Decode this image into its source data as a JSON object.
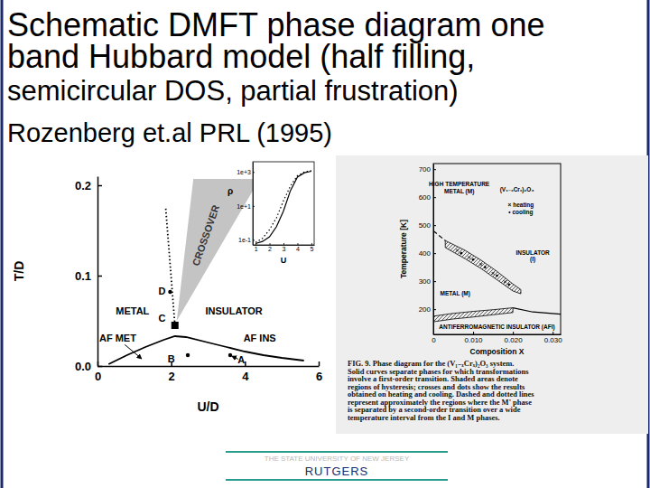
{
  "slide": {
    "title_lines": [
      "Schematic DMFT phase diagram one",
      "band  Hubbard model (half filling,",
      "semicircular DOS, partial frustration)",
      "Rozenberg et.al PRL (1995)"
    ],
    "footer": [
      "THE STATE UNIVERSITY OF NEW JERSEY",
      "RUTGERS"
    ]
  },
  "chart_data": [
    {
      "type": "line",
      "xlabel": "U/D",
      "ylabel": "T/D",
      "xlim": [
        0,
        6
      ],
      "ylim": [
        0,
        0.21
      ],
      "xticks": [
        0,
        2,
        4,
        6
      ],
      "yticks": [
        {
          "value": 0,
          "label": "0.0"
        },
        0.1,
        0.2
      ],
      "series": [
        {
          "type": "area",
          "label": "CROSSOVER",
          "x": [
            2.15,
            2.6,
            4.4
          ],
          "values": [
            0.05,
            0.207,
            0.207
          ],
          "color": "#c4c4c4"
        },
        {
          "type": "line",
          "x": [
            2.1,
            1.85
          ],
          "values": [
            0.045,
            0.175
          ],
          "color": "#000000",
          "line_style": "dotted"
        },
        {
          "type": "line",
          "x": [
            0.3,
            0.8,
            1.3,
            1.8,
            2.1,
            2.4,
            3,
            3.5,
            4,
            4.5,
            5,
            5.6
          ],
          "values": [
            0.002,
            0.012,
            0.021,
            0.029,
            0.033,
            0.032,
            0.026,
            0.021,
            0.016,
            0.012,
            0.009,
            0.006
          ],
          "color": "#000000",
          "line_style": "solid"
        },
        {
          "type": "scatter",
          "x": [
            2.1
          ],
          "values": [
            0.045
          ],
          "marker": "square",
          "color": "#000000"
        },
        {
          "type": "scatter",
          "x": [
            1.97,
            2.45,
            3.6
          ],
          "values": [
            0.082,
            0.012,
            0.012
          ],
          "marker": "circle",
          "color": "#000000"
        }
      ],
      "annotations": [
        {
          "text": "METAL",
          "x": 0.95,
          "y": 0.06
        },
        {
          "text": "INSULATOR",
          "x": 3.7,
          "y": 0.06
        },
        {
          "text": "D",
          "x": 1.75,
          "y": 0.082
        },
        {
          "text": "C",
          "x": 1.75,
          "y": 0.052
        },
        {
          "text": "AF MET",
          "x": 0.55,
          "y": 0.03,
          "arrow": [
            1.2,
            0.008
          ]
        },
        {
          "text": "AF INS",
          "x": 4.4,
          "y": 0.03
        },
        {
          "text": "B",
          "x": 2.0,
          "y": 0.007
        },
        {
          "text": "A",
          "x": 3.9,
          "y": 0.006,
          "arrow": [
            3.64,
            0.011
          ]
        }
      ]
    },
    {
      "type": "line",
      "log": "y",
      "xlabel": "U",
      "ylabel": "ρ",
      "xlim": [
        0.8,
        5.2
      ],
      "ylim": [
        0.05,
        4000
      ],
      "xticks": [
        1,
        2,
        3,
        4,
        5
      ],
      "yticks": [
        {
          "value": 0.1,
          "label": "1e-1"
        },
        {
          "value": 10,
          "label": "1e+1"
        },
        {
          "value": 1000,
          "label": "1e+3"
        }
      ],
      "series": [
        {
          "type": "line",
          "x": [
            1,
            1.5,
            2,
            2.5,
            3,
            3.5,
            4,
            4.5,
            5
          ],
          "values": [
            0.06,
            0.08,
            0.15,
            0.6,
            5,
            80,
            500,
            900,
            1100
          ],
          "color": "#000000",
          "line_style": "solid"
        },
        {
          "type": "line",
          "x": [
            1,
            1.5,
            2,
            2.5,
            3,
            3.5,
            4,
            4.5,
            5
          ],
          "values": [
            0.07,
            0.12,
            0.4,
            2,
            20,
            150,
            600,
            1000,
            1200
          ],
          "color": "#000000",
          "line_style": "dotted"
        }
      ]
    },
    {
      "type": "line",
      "xlabel": "Composition X",
      "ylabel": "Temperature [K]",
      "xlim": [
        0,
        0.032
      ],
      "ylim": [
        110,
        720
      ],
      "xticks": [
        0,
        {
          "value": 0.01,
          "label": "0.010"
        },
        {
          "value": 0.02,
          "label": "0.020"
        },
        {
          "value": 0.03,
          "label": "0.030"
        }
      ],
      "yticks": [
        200,
        300,
        400,
        500,
        600,
        700
      ],
      "series": [
        {
          "type": "band",
          "x": [
            0.003,
            0.008,
            0.012,
            0.016,
            0.02,
            0.022
          ],
          "values": [
            445,
            410,
            375,
            335,
            290,
            270
          ],
          "low": [
            420,
            380,
            345,
            305,
            265,
            255
          ],
          "color": "#000000"
        },
        {
          "type": "band",
          "x": [
            0,
            0.005,
            0.01,
            0.015,
            0.02
          ],
          "values": [
            175,
            185,
            192,
            198,
            205
          ],
          "low": [
            155,
            165,
            172,
            180,
            188
          ],
          "color": "#000000"
        },
        {
          "type": "line",
          "x": [
            0.02,
            0.025,
            0.032
          ],
          "values": [
            205,
            190,
            182
          ],
          "color": "#000000",
          "line_style": "solid"
        },
        {
          "type": "line",
          "x": [
            0,
            0.003
          ],
          "values": [
            480,
            445
          ],
          "color": "#000000",
          "line_style": "dashed"
        },
        {
          "type": "scatter",
          "x": [
            0.006,
            0.009,
            0.012,
            0.015,
            0.018
          ],
          "values": [
            410,
            385,
            360,
            328,
            298
          ],
          "marker": "x",
          "color": "#000000"
        },
        {
          "type": "scatter",
          "x": [
            0.007,
            0.01,
            0.013,
            0.016,
            0.019
          ],
          "values": [
            400,
            377,
            350,
            320,
            288
          ],
          "marker": "circle",
          "color": "#000000"
        }
      ],
      "annotations": [
        {
          "text": "HIGH TEMPERATURE",
          "x": 0.0065,
          "y": 645
        },
        {
          "text": "METAL (M)",
          "x": 0.0065,
          "y": 620
        },
        {
          "text": "(V₁₋ₓCrₓ)₂O₃",
          "x": 0.021,
          "y": 625
        },
        {
          "text": "× heating",
          "x": 0.022,
          "y": 570
        },
        {
          "text": "• cooling",
          "x": 0.022,
          "y": 545
        },
        {
          "text": "INSULATOR",
          "x": 0.025,
          "y": 400
        },
        {
          "text": "(I)",
          "x": 0.025,
          "y": 378
        },
        {
          "text": "METAL (M)",
          "x": 0.0055,
          "y": 255
        },
        {
          "text": "ANTIFERROMAGNETIC INSULATOR (AFI)",
          "x": 0.016,
          "y": 135
        }
      ],
      "caption": [
        "FIG. 9.  Phase diagram for the (V₁₋ₓCrₓ)₂O₃ system.",
        "Solid curves separate phases for which transformations",
        "involve a first-order transition. Shaded areas denote",
        "regions of hysteresis; crosses and dots show the results",
        "obtained on heating and cooling. Dashed and dotted lines",
        "represent approximately the regions where the M' phase",
        "is separated by a second-order transition over a wide",
        "temperature interval from the I and M phases."
      ]
    }
  ]
}
